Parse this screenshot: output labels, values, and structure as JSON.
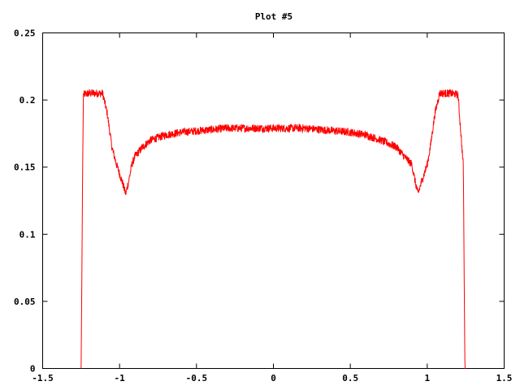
{
  "chart_data": {
    "type": "line",
    "title": "Plot #5",
    "xlabel": "",
    "ylabel": "",
    "xlim": [
      -1.5,
      1.5
    ],
    "ylim": [
      0,
      0.25
    ],
    "x_ticks": [
      -1.5,
      -1,
      -0.5,
      0,
      0.5,
      1,
      1.5
    ],
    "x_tick_labels": [
      "-1.5",
      "-1",
      "-0.5",
      "0",
      "0.5",
      "1",
      "1.5"
    ],
    "y_ticks": [
      0,
      0.05,
      0.1,
      0.15,
      0.2,
      0.25
    ],
    "y_tick_labels": [
      "0",
      "0.05",
      "0.1",
      "0.15",
      "0.2",
      "0.25"
    ],
    "grid": false,
    "legend": "none",
    "series": [
      {
        "color": "#ff0000",
        "noise_amplitude": 0.003,
        "x": [
          -1.25,
          -1.245,
          -1.24,
          -1.235,
          -1.2,
          -1.15,
          -1.11,
          -1.08,
          -1.05,
          -1.02,
          -1.0,
          -0.98,
          -0.96,
          -0.94,
          -0.92,
          -0.9,
          -0.85,
          -0.8,
          -0.7,
          -0.6,
          -0.5,
          -0.4,
          -0.3,
          -0.2,
          -0.1,
          0.0,
          0.1,
          0.2,
          0.3,
          0.4,
          0.5,
          0.6,
          0.7,
          0.8,
          0.85,
          0.9,
          0.92,
          0.94,
          0.96,
          0.98,
          1.0,
          1.02,
          1.05,
          1.08,
          1.11,
          1.15,
          1.2,
          1.235,
          1.24,
          1.245,
          1.25
        ],
        "y": [
          0.0,
          0.07,
          0.15,
          0.204,
          0.205,
          0.205,
          0.205,
          0.19,
          0.165,
          0.152,
          0.145,
          0.138,
          0.13,
          0.14,
          0.152,
          0.158,
          0.165,
          0.17,
          0.174,
          0.176,
          0.177,
          0.178,
          0.179,
          0.179,
          0.179,
          0.179,
          0.179,
          0.179,
          0.178,
          0.177,
          0.176,
          0.174,
          0.17,
          0.165,
          0.158,
          0.152,
          0.14,
          0.13,
          0.138,
          0.145,
          0.152,
          0.165,
          0.19,
          0.205,
          0.205,
          0.205,
          0.204,
          0.15,
          0.07,
          0.0,
          0.0
        ]
      }
    ]
  }
}
